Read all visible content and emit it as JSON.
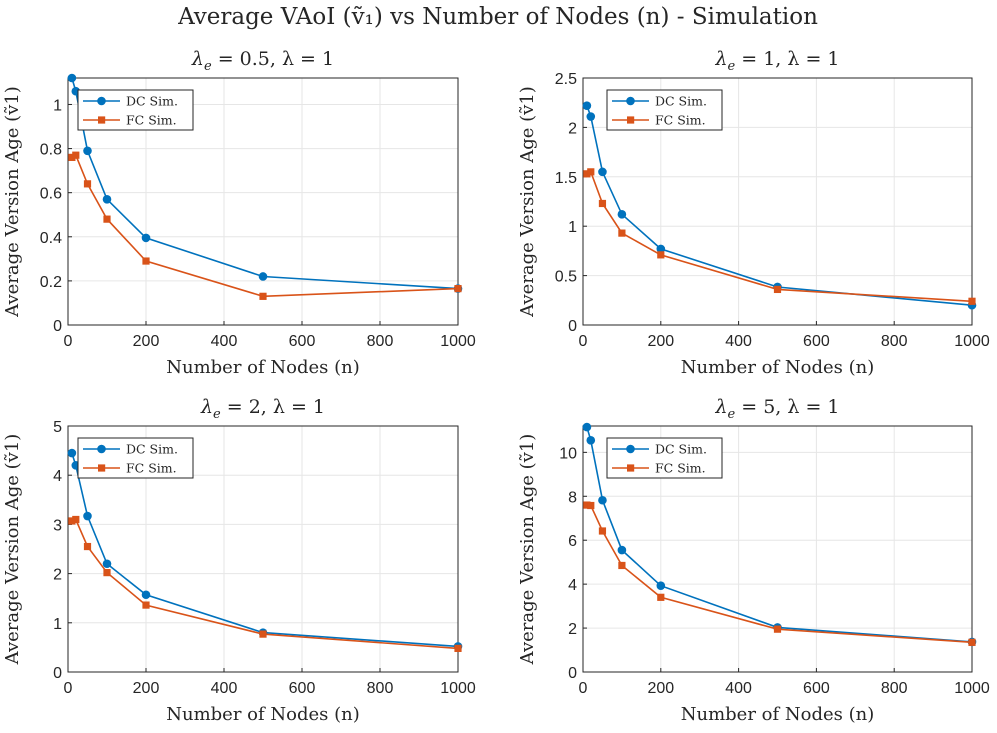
{
  "figure_title": "Average VAoI (ṽ₁) vs Number of Nodes (n) - Simulation",
  "colors": {
    "dc": "#0072BD",
    "fc": "#D95319",
    "axis": "#262626",
    "grid": "#E6E6E6"
  },
  "chart_data": [
    {
      "type": "line",
      "title": "λe = 0.5, λ = 1",
      "title_parts": {
        "sym": "λ",
        "sub": "e",
        "rest": " = 0.5, λ = 1"
      },
      "xlabel": "Number of Nodes (n)",
      "ylabel": "Average Version Age (ṽ1)",
      "xlim": [
        0,
        1000
      ],
      "ylim": [
        0,
        1.12
      ],
      "xticks": [
        0,
        200,
        400,
        600,
        800,
        1000
      ],
      "xtick_labels": [
        "0",
        "200",
        "400",
        "600",
        "800",
        "1000"
      ],
      "yticks": [
        0,
        0.2,
        0.4,
        0.6,
        0.8,
        1
      ],
      "ytick_labels": [
        "0",
        "0.2",
        "0.4",
        "0.6",
        "0.8",
        "1"
      ],
      "legend": {
        "position": "top-left",
        "entries": [
          "DC Sim.",
          "FC Sim."
        ]
      },
      "grid": true,
      "series": [
        {
          "name": "DC Sim.",
          "marker": "circle",
          "x": [
            10,
            20,
            50,
            100,
            200,
            500,
            1000
          ],
          "y": [
            1.12,
            1.06,
            0.79,
            0.57,
            0.395,
            0.22,
            0.165
          ]
        },
        {
          "name": "FC Sim.",
          "marker": "square",
          "x": [
            10,
            20,
            50,
            100,
            200,
            500,
            1000
          ],
          "y": [
            0.76,
            0.77,
            0.64,
            0.48,
            0.29,
            0.13,
            0.165
          ]
        }
      ]
    },
    {
      "type": "line",
      "title": "λe = 1, λ = 1",
      "title_parts": {
        "sym": "λ",
        "sub": "e",
        "rest": " = 1, λ = 1"
      },
      "xlabel": "Number of Nodes (n)",
      "ylabel": "Average Version Age (ṽ1)",
      "xlim": [
        0,
        1000
      ],
      "ylim": [
        0,
        2.5
      ],
      "xticks": [
        0,
        200,
        400,
        600,
        800,
        1000
      ],
      "xtick_labels": [
        "0",
        "200",
        "400",
        "600",
        "800",
        "1000"
      ],
      "yticks": [
        0,
        0.5,
        1,
        1.5,
        2,
        2.5
      ],
      "ytick_labels": [
        "0",
        "0.5",
        "1",
        "1.5",
        "2",
        "2.5"
      ],
      "legend": {
        "position": "top-right",
        "entries": [
          "DC Sim.",
          "FC Sim."
        ]
      },
      "grid": true,
      "series": [
        {
          "name": "DC Sim.",
          "marker": "circle",
          "x": [
            10,
            20,
            50,
            100,
            200,
            500,
            1000
          ],
          "y": [
            2.22,
            2.11,
            1.55,
            1.12,
            0.77,
            0.385,
            0.2
          ]
        },
        {
          "name": "FC Sim.",
          "marker": "square",
          "x": [
            10,
            20,
            50,
            100,
            200,
            500,
            1000
          ],
          "y": [
            1.53,
            1.55,
            1.23,
            0.93,
            0.71,
            0.36,
            0.24
          ]
        }
      ]
    },
    {
      "type": "line",
      "title": "λe = 2, λ = 1",
      "title_parts": {
        "sym": "λ",
        "sub": "e",
        "rest": " = 2, λ = 1"
      },
      "xlabel": "Number of Nodes (n)",
      "ylabel": "Average Version Age (ṽ1)",
      "xlim": [
        0,
        1000
      ],
      "ylim": [
        0,
        5
      ],
      "xticks": [
        0,
        200,
        400,
        600,
        800,
        1000
      ],
      "xtick_labels": [
        "0",
        "200",
        "400",
        "600",
        "800",
        "1000"
      ],
      "yticks": [
        0,
        1,
        2,
        3,
        4,
        5
      ],
      "ytick_labels": [
        "0",
        "1",
        "2",
        "3",
        "4",
        "5"
      ],
      "legend": {
        "position": "top-left",
        "entries": [
          "DC Sim.",
          "FC Sim."
        ]
      },
      "grid": true,
      "series": [
        {
          "name": "DC Sim.",
          "marker": "circle",
          "x": [
            10,
            20,
            50,
            100,
            200,
            500,
            1000
          ],
          "y": [
            4.45,
            4.2,
            3.17,
            2.2,
            1.57,
            0.8,
            0.52
          ]
        },
        {
          "name": "FC Sim.",
          "marker": "square",
          "x": [
            10,
            20,
            50,
            100,
            200,
            500,
            1000
          ],
          "y": [
            3.07,
            3.1,
            2.55,
            2.02,
            1.36,
            0.77,
            0.48
          ]
        }
      ]
    },
    {
      "type": "line",
      "title": "λe = 5, λ = 1",
      "title_parts": {
        "sym": "λ",
        "sub": "e",
        "rest": " = 5, λ = 1"
      },
      "xlabel": "Number of Nodes (n)",
      "ylabel": "Average Version Age (ṽ1)",
      "xlim": [
        0,
        1000
      ],
      "ylim": [
        0,
        11.2
      ],
      "xticks": [
        0,
        200,
        400,
        600,
        800,
        1000
      ],
      "xtick_labels": [
        "0",
        "200",
        "400",
        "600",
        "800",
        "1000"
      ],
      "yticks": [
        0,
        2,
        4,
        6,
        8,
        10
      ],
      "ytick_labels": [
        "0",
        "2",
        "4",
        "6",
        "8",
        "10"
      ],
      "legend": {
        "position": "top-right",
        "entries": [
          "DC Sim.",
          "FC Sim."
        ]
      },
      "grid": true,
      "series": [
        {
          "name": "DC Sim.",
          "marker": "circle",
          "x": [
            10,
            20,
            50,
            100,
            200,
            500,
            1000
          ],
          "y": [
            11.15,
            10.55,
            7.82,
            5.55,
            3.93,
            2.03,
            1.37
          ]
        },
        {
          "name": "FC Sim.",
          "marker": "square",
          "x": [
            10,
            20,
            50,
            100,
            200,
            500,
            1000
          ],
          "y": [
            7.6,
            7.58,
            6.42,
            4.85,
            3.4,
            1.95,
            1.35
          ]
        }
      ]
    }
  ]
}
